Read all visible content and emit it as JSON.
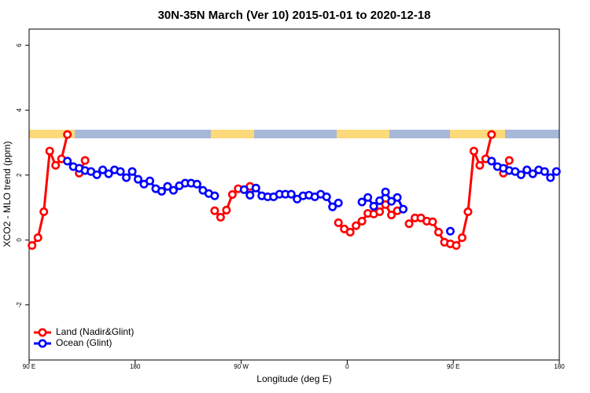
{
  "chart_data": {
    "type": "line",
    "title": "30N-35N March (Ver 10)   2015-01-01 to 2020-12-18",
    "x_label": "Longitude (deg E)",
    "y_label": "XCO2 - MLO trend (ppm)",
    "xlim": [
      90,
      540
    ],
    "xticks": [
      {
        "value": 90,
        "label": "90 E"
      },
      180,
      {
        "value": 270,
        "label": "90 W"
      },
      {
        "value": 360,
        "label": "0"
      },
      {
        "value": 450,
        "label": "90 E"
      },
      {
        "value": 540,
        "label": "180"
      }
    ],
    "ylim": [
      -3.7,
      6.5
    ],
    "yticks": [
      -2,
      0,
      2,
      4,
      6
    ],
    "legend": "bottomleft",
    "x": [
      92.5,
      97.5,
      102.5,
      107.5,
      112.5,
      117.5,
      122.5,
      127.5,
      132.5,
      137.5,
      142.5,
      147.5,
      152.5,
      157.5,
      162.5,
      167.5,
      172.5,
      177.5,
      182.5,
      187.5,
      192.5,
      197.5,
      202.5,
      207.5,
      212.5,
      217.5,
      222.5,
      227.5,
      232.5,
      237.5,
      242.5,
      247.5,
      252.5,
      257.5,
      262.5,
      267.5,
      272.5,
      277.5,
      282.5,
      287.5,
      292.5,
      297.5,
      302.5,
      307.5,
      312.5,
      317.5,
      322.5,
      327.5,
      332.5,
      337.5,
      342.5,
      347.5,
      352.5,
      357.5,
      362.5,
      367.5,
      372.5,
      377.5,
      382.5,
      387.5,
      392.5,
      397.5,
      402.5,
      407.5,
      412.5,
      417.5,
      422.5,
      427.5,
      432.5,
      437.5,
      442.5,
      447.5,
      452.5,
      457.5,
      462.5,
      467.5,
      472.5,
      477.5,
      482.5,
      487.5,
      492.5,
      497.5,
      502.5,
      507.5,
      512.5,
      517.5,
      522.5,
      527.5,
      532.5,
      537.5
    ],
    "series": [
      {
        "name": "Land (Nadir&Glint)",
        "color": "#ff0000",
        "values": [
          -0.17,
          0.07,
          0.87,
          2.74,
          2.3,
          2.5,
          3.25,
          null,
          2.06,
          2.45,
          null,
          null,
          null,
          null,
          null,
          null,
          null,
          null,
          null,
          null,
          null,
          null,
          null,
          null,
          null,
          null,
          null,
          null,
          null,
          null,
          null,
          0.9,
          0.7,
          0.92,
          1.4,
          1.58,
          null,
          1.65,
          null,
          null,
          null,
          null,
          null,
          null,
          null,
          null,
          null,
          null,
          null,
          null,
          null,
          null,
          0.53,
          0.34,
          0.24,
          0.44,
          0.58,
          0.82,
          0.8,
          0.87,
          1.09,
          0.77,
          0.9,
          null,
          0.5,
          0.68,
          0.68,
          0.58,
          0.56,
          0.24,
          -0.07,
          -0.12,
          -0.17,
          0.07,
          0.87,
          2.74,
          2.3,
          2.5,
          3.25,
          null,
          2.06,
          2.45,
          null,
          null,
          null,
          null,
          null,
          null,
          null,
          null
        ]
      },
      {
        "name": "Ocean (Glint)",
        "color": "#0000ff",
        "values": [
          null,
          null,
          null,
          null,
          null,
          null,
          2.43,
          2.26,
          2.21,
          2.14,
          2.11,
          2.01,
          2.16,
          2.04,
          2.16,
          2.11,
          1.92,
          2.11,
          1.87,
          1.72,
          1.82,
          1.58,
          1.5,
          1.65,
          1.53,
          1.67,
          1.75,
          1.75,
          1.72,
          1.53,
          1.43,
          1.36,
          null,
          null,
          null,
          null,
          1.55,
          1.38,
          1.6,
          1.36,
          1.33,
          1.33,
          1.41,
          1.41,
          1.41,
          1.26,
          1.36,
          1.38,
          1.33,
          1.41,
          1.33,
          1.02,
          1.14,
          null,
          null,
          null,
          1.17,
          1.31,
          1.04,
          1.21,
          1.48,
          1.19,
          1.31,
          0.95,
          null,
          null,
          null,
          null,
          null,
          null,
          null,
          0.27,
          null,
          null,
          null,
          null,
          null,
          null,
          2.43,
          2.26,
          2.21,
          2.14,
          2.11,
          2.01,
          2.16,
          2.04,
          2.16,
          2.11,
          1.92,
          2.11
        ]
      }
    ]
  }
}
